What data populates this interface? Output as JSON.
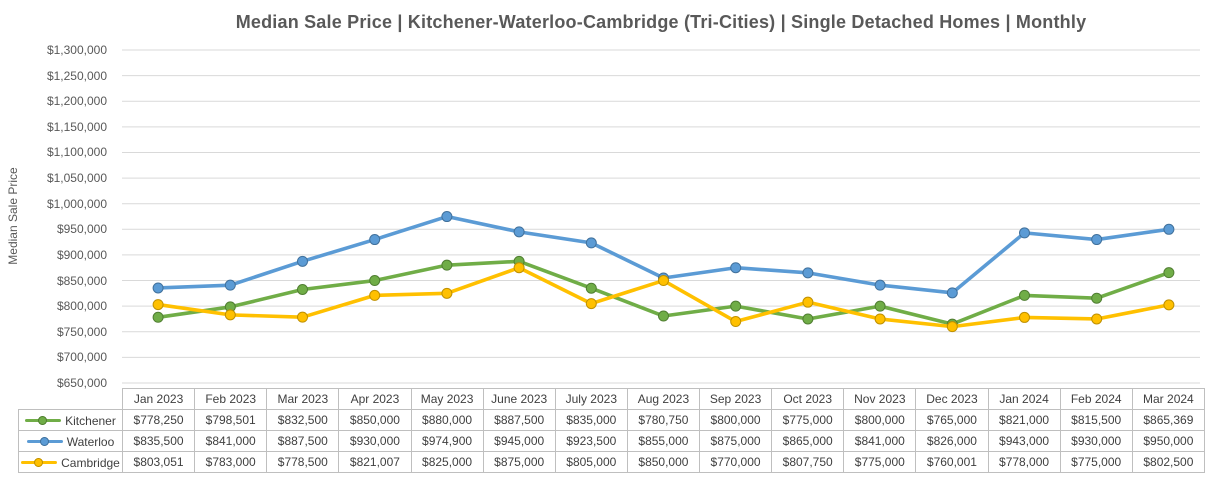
{
  "title": "Median Sale Price | Kitchener-Waterloo-Cambridge (Tri-Cities) | Single Detached Homes | Monthly",
  "chart_data": {
    "type": "line",
    "title": "Median Sale Price | Kitchener-Waterloo-Cambridge (Tri-Cities) | Single Detached Homes | Monthly",
    "xlabel": "",
    "ylabel": "Median Sale Price",
    "ylim": [
      650000,
      1300000
    ],
    "ytick_step": 50000,
    "grid": true,
    "legend_position": "table-left",
    "value_format": "currency-usd-commas",
    "categories": [
      "Jan 2023",
      "Feb 2023",
      "Mar 2023",
      "Apr 2023",
      "May 2023",
      "June 2023",
      "July 2023",
      "Aug 2023",
      "Sep 2023",
      "Oct 2023",
      "Nov 2023",
      "Dec 2023",
      "Jan 2024",
      "Feb 2024",
      "Mar 2024"
    ],
    "series": [
      {
        "name": "Kitchener",
        "color": "#70AD47",
        "marker_border": "#507E32",
        "values": [
          778250,
          798501,
          832500,
          850000,
          880000,
          887500,
          835000,
          780750,
          800000,
          775000,
          800000,
          765000,
          821000,
          815500,
          865369
        ]
      },
      {
        "name": "Waterloo",
        "color": "#5B9BD5",
        "marker_border": "#41719C",
        "values": [
          835500,
          841000,
          887500,
          930000,
          974900,
          945000,
          923500,
          855000,
          875000,
          865000,
          841000,
          826000,
          943000,
          930000,
          950000
        ]
      },
      {
        "name": "Cambridge",
        "color": "#FFC000",
        "marker_border": "#BF9000",
        "values": [
          803051,
          783000,
          778500,
          821007,
          825000,
          875000,
          805000,
          850000,
          770000,
          807750,
          775000,
          760001,
          778000,
          775000,
          802500
        ]
      }
    ],
    "style": {
      "gridline_color": "#D9D9D9",
      "axis_text_color": "#595959",
      "title_color": "#595959",
      "table_text_color": "#404040",
      "table_border_color": "#BFBFBF",
      "background": "#FFFFFF"
    }
  }
}
